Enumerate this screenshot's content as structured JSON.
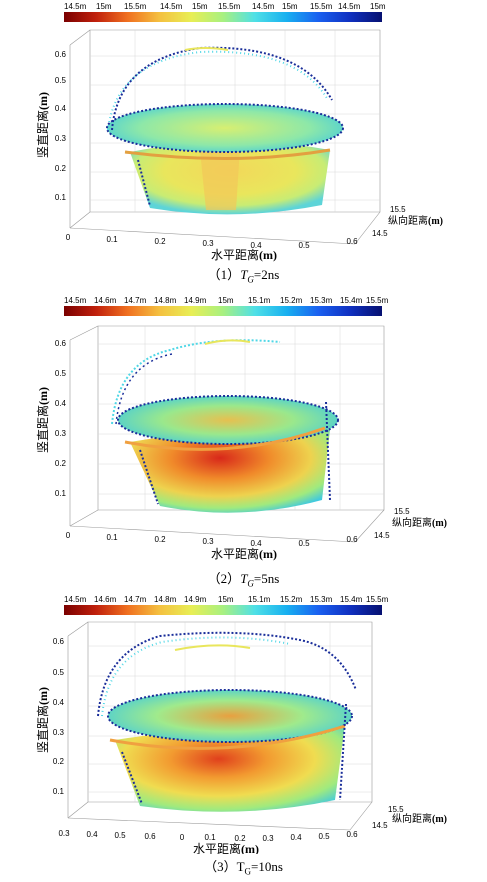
{
  "figures": [
    {
      "colorbar_labels": [
        "14.5m",
        "15m",
        "15.5m",
        "14.5m",
        "15m",
        "15.5m",
        "14.5m",
        "15m",
        "15.5m",
        "14.5m",
        "15m"
      ],
      "z_label": "竖直距离",
      "z_unit": "(m)",
      "z_ticks": [
        "0.6",
        "0.5",
        "0.4",
        "0.3",
        "0.2",
        "0.1"
      ],
      "x_label": "水平距离",
      "x_unit": "(m)",
      "x_ticks": [
        "0",
        "0.1",
        "0.2",
        "0.3",
        "0.4",
        "0.5",
        "0.6"
      ],
      "y_label": "纵向距离",
      "y_unit": "(m)",
      "y_ticks": [
        "15.5",
        "14.5"
      ],
      "caption_prefix": "（1）",
      "caption_T": "T",
      "caption_sub": "G",
      "caption_value": "=2ns"
    },
    {
      "colorbar_labels": [
        "14.5m",
        "14.6m",
        "14.7m",
        "14.8m",
        "14.9m",
        "15m",
        "15.1m",
        "15.2m",
        "15.3m",
        "15.4m",
        "15.5m"
      ],
      "z_label": "竖直距离",
      "z_unit": "(m)",
      "z_ticks": [
        "0.6",
        "0.5",
        "0.4",
        "0.3",
        "0.2",
        "0.1"
      ],
      "x_label": "水平距离",
      "x_unit": "(m)",
      "x_ticks": [
        "0",
        "0.1",
        "0.2",
        "0.3",
        "0.4",
        "0.5",
        "0.6"
      ],
      "y_label": "纵向距离",
      "y_unit": "(m)",
      "y_ticks": [
        "15.5",
        "14.5"
      ],
      "caption_prefix": "（2）",
      "caption_T": "T",
      "caption_sub": "G",
      "caption_value": "=5ns"
    },
    {
      "colorbar_labels": [
        "14.5m",
        "14.6m",
        "14.7m",
        "14.8m",
        "14.9m",
        "15m",
        "15.1m",
        "15.2m",
        "15.3m",
        "15.4m",
        "15.5m"
      ],
      "z_label": "竖直距离",
      "z_unit": "(m)",
      "z_ticks": [
        "0.6",
        "0.5",
        "0.4",
        "0.3",
        "0.2",
        "0.1"
      ],
      "x_label": "水平距离",
      "x_unit": "(m)",
      "x_ticks": [
        "0.3",
        "0.4",
        "0.5",
        "0.6",
        "0",
        "0.1",
        "0.2",
        "0.3",
        "0.4",
        "0.5",
        "0.6"
      ],
      "y_label": "纵向距离",
      "y_unit": "(m)",
      "y_ticks": [
        "15.5",
        "14.5"
      ],
      "caption_prefix": "（3）",
      "caption_T": "T",
      "caption_sub": "G",
      "caption_value": "=10ns"
    }
  ],
  "colors": {
    "colorbar": [
      "#7a0000",
      "#b30000",
      "#e52b12",
      "#f2701f",
      "#f6b33a",
      "#eeea4a",
      "#b9f07a",
      "#52e6e6",
      "#16b6f0",
      "#1a5ff0",
      "#0a1a9a"
    ],
    "rim_dark": "#1a2e9a",
    "rim_cyan": "#4fd7e6",
    "body_yellow": "#f0e15a",
    "body_green": "#a8ea78",
    "body_orange": "#f08a2a",
    "body_red": "#d8281a"
  }
}
